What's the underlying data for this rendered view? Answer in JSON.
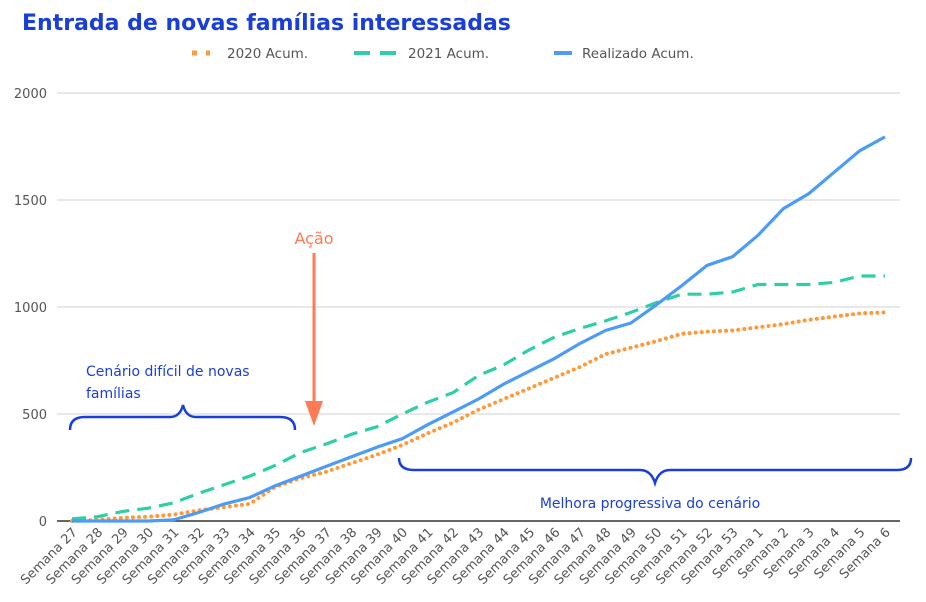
{
  "chart_data": {
    "type": "line",
    "title": "Entrada de novas famílias interessadas",
    "xlabel": "",
    "ylabel": "",
    "ylim": [
      0,
      2000
    ],
    "yticks": [
      0,
      500,
      1000,
      1500,
      2000
    ],
    "grid": true,
    "legend_position": "top",
    "categories": [
      "Semana 27",
      "Semana 28",
      "Semana 29",
      "Semana 30",
      "Semana 31",
      "Semana 32",
      "Semana 33",
      "Semana 34",
      "Semana 35",
      "Semana 36",
      "Semana 37",
      "Semana 38",
      "Semana 39",
      "Semana 40",
      "Semana 41",
      "Semana 42",
      "Semana 43",
      "Semana 44",
      "Semana 45",
      "Semana 46",
      "Semana 47",
      "Semana 48",
      "Semana 49",
      "Semana 50",
      "Semana 51",
      "Semana 52",
      "Semana 53",
      "Semana 1",
      "Semana 2",
      "Semana 3",
      "Semana 4",
      "Semana 5",
      "Semana 6"
    ],
    "series": [
      {
        "name": "2020 Acum.",
        "color": "#ff9a3c",
        "style": "dotted",
        "values": [
          0,
          5,
          15,
          20,
          30,
          50,
          65,
          80,
          160,
          200,
          230,
          270,
          310,
          355,
          410,
          460,
          520,
          570,
          620,
          670,
          720,
          780,
          810,
          840,
          875,
          885,
          890,
          905,
          920,
          940,
          955,
          970,
          975
        ]
      },
      {
        "name": "2021 Acum.",
        "color": "#2ecfa8",
        "style": "dashed",
        "values": [
          10,
          20,
          45,
          60,
          85,
          130,
          170,
          210,
          260,
          320,
          360,
          405,
          440,
          500,
          555,
          600,
          680,
          730,
          800,
          860,
          900,
          935,
          975,
          1020,
          1060,
          1060,
          1070,
          1105,
          1105,
          1105,
          1115,
          1145,
          1145
        ]
      },
      {
        "name": "Realizado Acum.",
        "color": "#4c9bf5",
        "style": "solid",
        "values": [
          0,
          0,
          0,
          0,
          5,
          40,
          80,
          110,
          165,
          210,
          255,
          300,
          345,
          385,
          450,
          510,
          570,
          640,
          700,
          760,
          830,
          890,
          925,
          1010,
          1100,
          1195,
          1235,
          1335,
          1460,
          1530,
          1630,
          1730,
          1795
        ]
      }
    ],
    "annotations": {
      "action": "Ação",
      "left_brace": "Cenário difícil de novas famílias",
      "left_brace_line1": "Cenário difícil de novas",
      "left_brace_line2": "famílias",
      "right_brace": "Melhora progressiva do cenário"
    },
    "annotation_colors": {
      "action": "#ff7a55",
      "brace": "#1a3fd6"
    }
  }
}
